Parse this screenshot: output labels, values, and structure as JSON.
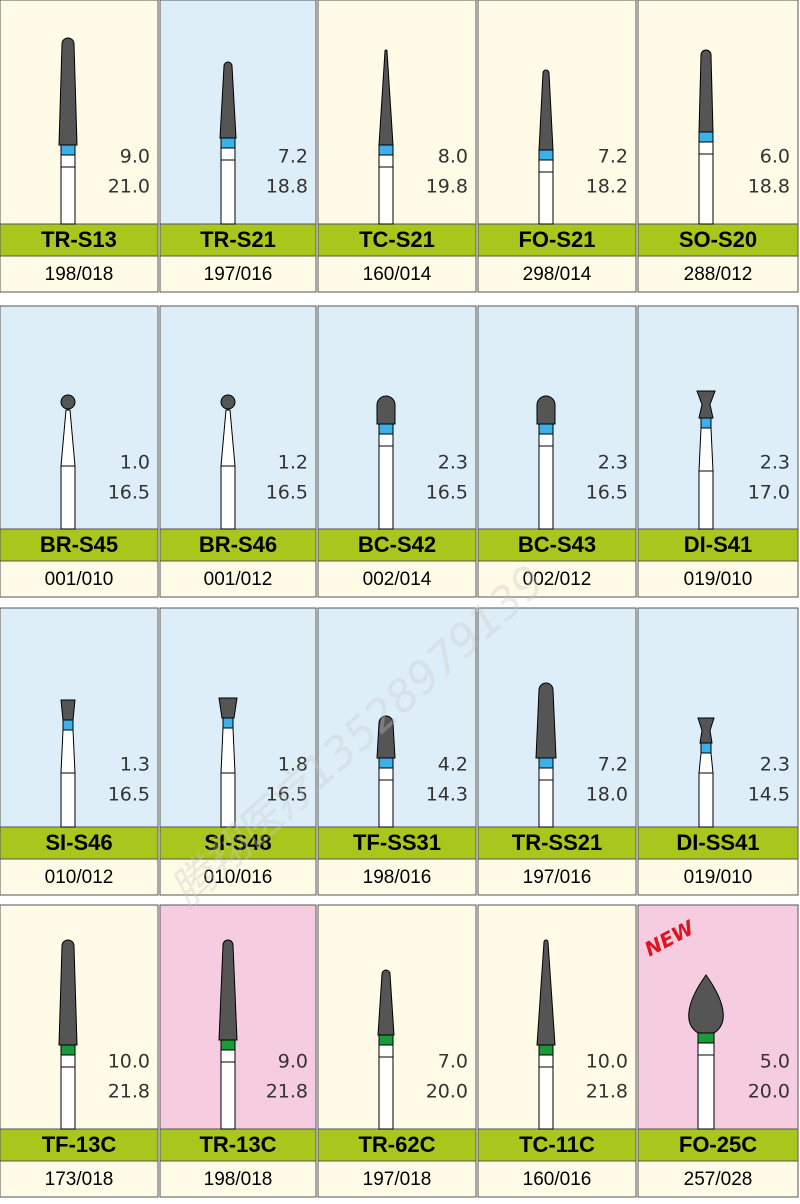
{
  "badge": "NEW",
  "watermark": "腾翔医疗13528979139",
  "groups": [
    {
      "items": [
        {
          "name": "TR-S13",
          "code": "198/018",
          "length": "9.0",
          "total": "21.0"
        },
        {
          "name": "TR-S21",
          "code": "197/016",
          "length": "7.2",
          "total": "18.8"
        },
        {
          "name": "TC-S21",
          "code": "160/014",
          "length": "8.0",
          "total": "19.8"
        },
        {
          "name": "FO-S21",
          "code": "298/014",
          "length": "7.2",
          "total": "18.2"
        },
        {
          "name": "SO-S20",
          "code": "288/012",
          "length": "6.0",
          "total": "18.8"
        }
      ]
    },
    {
      "items": [
        {
          "name": "BR-S45",
          "code": "001/010",
          "length": "1.0",
          "total": "16.5"
        },
        {
          "name": "BR-S46",
          "code": "001/012",
          "length": "1.2",
          "total": "16.5"
        },
        {
          "name": "BC-S42",
          "code": "002/014",
          "length": "2.3",
          "total": "16.5"
        },
        {
          "name": "BC-S43",
          "code": "002/012",
          "length": "2.3",
          "total": "16.5"
        },
        {
          "name": "DI-S41",
          "code": "019/010",
          "length": "2.3",
          "total": "17.0"
        }
      ]
    },
    {
      "items": [
        {
          "name": "SI-S46",
          "code": "010/012",
          "length": "1.3",
          "total": "16.5"
        },
        {
          "name": "SI-S48",
          "code": "010/016",
          "length": "1.8",
          "total": "16.5"
        },
        {
          "name": "TF-SS31",
          "code": "198/016",
          "length": "4.2",
          "total": "14.3"
        },
        {
          "name": "TR-SS21",
          "code": "197/016",
          "length": "7.2",
          "total": "18.0"
        },
        {
          "name": "DI-SS41",
          "code": "019/010",
          "length": "2.3",
          "total": "14.5"
        }
      ]
    },
    {
      "items": [
        {
          "name": "TF-13C",
          "code": "173/018",
          "length": "10.0",
          "total": "21.8"
        },
        {
          "name": "TR-13C",
          "code": "198/018",
          "length": "9.0",
          "total": "21.8"
        },
        {
          "name": "TR-62C",
          "code": "197/018",
          "length": "7.0",
          "total": "20.0"
        },
        {
          "name": "TC-11C",
          "code": "160/016",
          "length": "10.0",
          "total": "21.8"
        },
        {
          "name": "FO-25C",
          "code": "257/028",
          "length": "5.0",
          "total": "20.0"
        }
      ]
    }
  ]
}
